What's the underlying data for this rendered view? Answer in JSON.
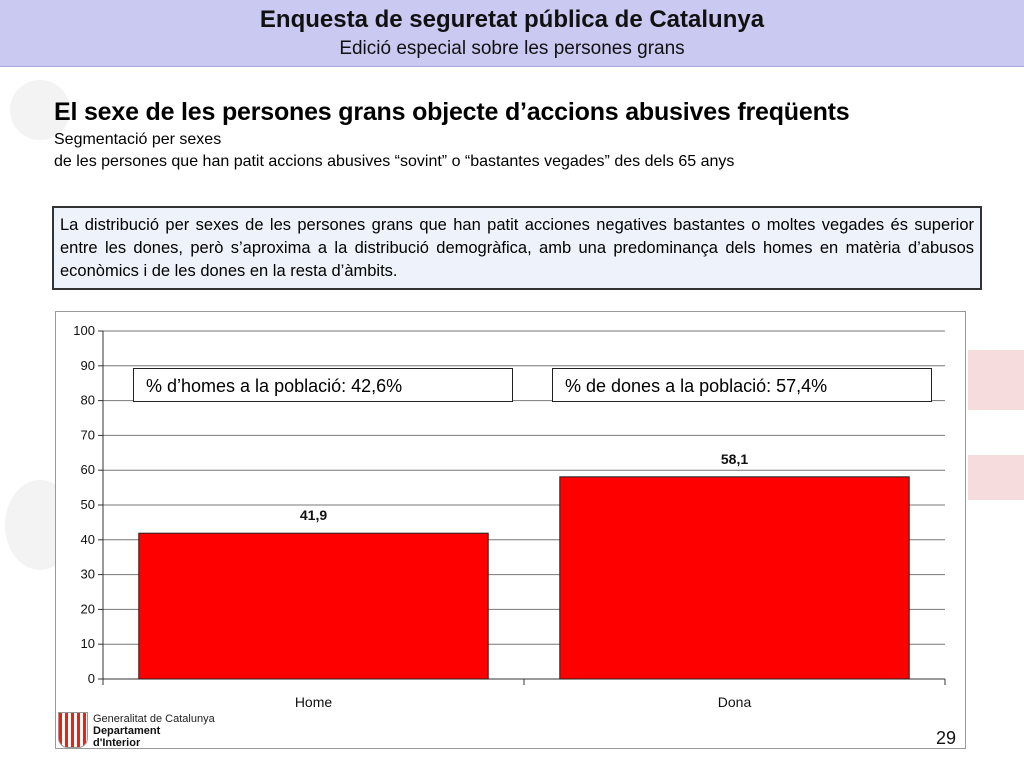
{
  "header": {
    "title": "Enquesta de seguretat pública de Catalunya",
    "subtitle": "Edició especial sobre les persones grans"
  },
  "slide": {
    "title": "El sexe de les persones grans objecte d’accions abusives freqüents",
    "sub1": "Segmentació per sexes",
    "sub2": "de les persones que han patit accions abusives “sovint” o “bastantes vegades” des dels 65 anys"
  },
  "note": "La distribució per sexes de les persones grans que han patit acciones negatives bastantes o moltes vegades és superior entre les dones, però s’aproxima a la distribució demogràfica, amb una predominança dels homes  en matèria d’abusos econòmics i de les dones en la resta d’àmbits.",
  "callouts": {
    "homes": "% d’homes a la població: 42,6%",
    "dones": "% de dones a la població: 57,4%"
  },
  "chart_data": {
    "type": "bar",
    "categories": [
      "Home",
      "Dona"
    ],
    "values": [
      41.9,
      58.1
    ],
    "data_labels": [
      "41,9",
      "58,1"
    ],
    "ylim": [
      0,
      100
    ],
    "yticks": [
      0,
      10,
      20,
      30,
      40,
      50,
      60,
      70,
      80,
      90,
      100
    ],
    "bar_color": "#ff0000",
    "grid": true
  },
  "footer": {
    "logo_line1": "Generalitat de Catalunya",
    "logo_line2": "Departament",
    "logo_line3": "d'Interior",
    "page_number": "29"
  }
}
